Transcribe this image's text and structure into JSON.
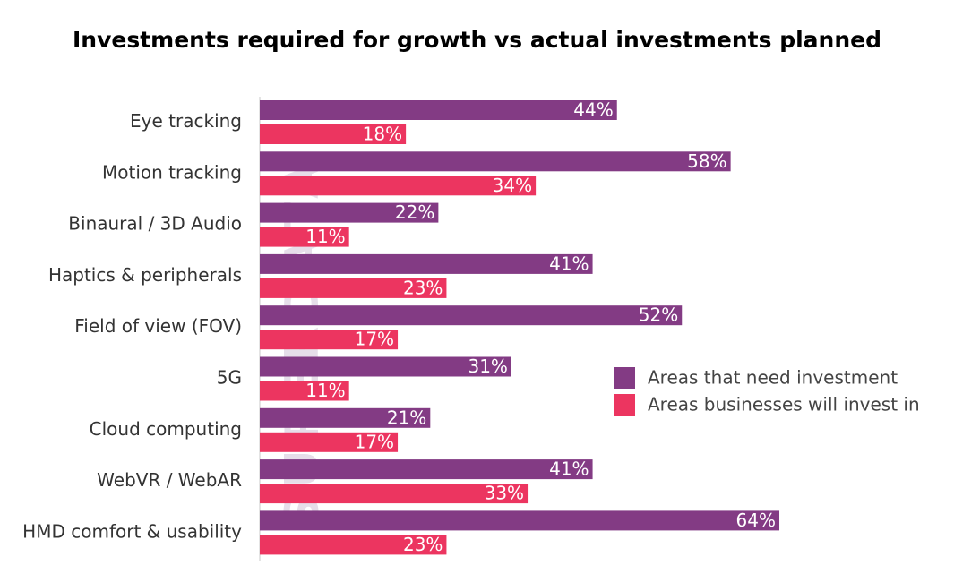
{
  "chart_data": {
    "type": "bar",
    "orientation": "horizontal",
    "title": "Investments required for growth vs actual investments planned",
    "categories": [
      "Eye tracking",
      "Motion tracking",
      "Binaural / 3D Audio",
      "Haptics & peripherals",
      "Field of view (FOV)",
      "5G",
      "Cloud computing",
      "WebVR / WebAR",
      "HMD comfort & usability"
    ],
    "series": [
      {
        "name": "Areas that need investment",
        "color": "#833b84",
        "values": [
          44,
          58,
          22,
          41,
          52,
          31,
          21,
          41,
          64
        ]
      },
      {
        "name": "Areas businesses will invest in",
        "color": "#ec3560",
        "values": [
          18,
          34,
          11,
          23,
          17,
          11,
          17,
          33,
          23
        ]
      }
    ],
    "value_suffix": "%",
    "xlim": [
      0,
      64
    ],
    "legend_position": "right",
    "grid": false,
    "watermark": "SUPERDATA"
  }
}
